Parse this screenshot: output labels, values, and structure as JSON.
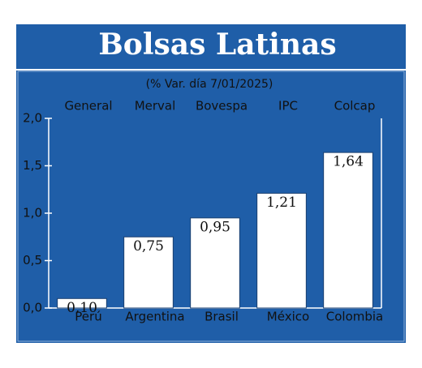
{
  "chart_data": {
    "type": "bar",
    "title": "Bolsas Latinas",
    "subtitle": "(% Var. día 7/01/2025)",
    "categories": [
      "Perú",
      "Argentina",
      "Brasil",
      "México",
      "Colombia"
    ],
    "index_names": [
      "General",
      "Merval",
      "Bovespa",
      "IPC",
      "Colcap"
    ],
    "values": [
      0.1,
      0.75,
      0.95,
      1.21,
      1.64
    ],
    "value_labels": [
      "0,10",
      "0,75",
      "0,95",
      "1,21",
      "1,64"
    ],
    "color": "#ffffff",
    "ylim": [
      0,
      2
    ],
    "yticks": [
      {
        "value": 0,
        "label": "0,0"
      },
      {
        "value": 0.5,
        "label": "0,5"
      },
      {
        "value": 1,
        "label": "1,0"
      },
      {
        "value": 1.5,
        "label": "1,5"
      },
      {
        "value": 2,
        "label": "2,0"
      }
    ]
  }
}
